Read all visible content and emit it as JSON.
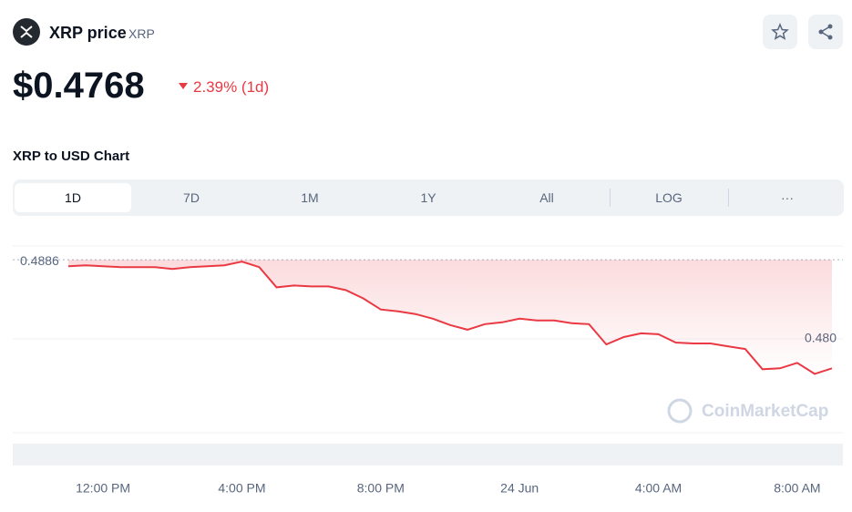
{
  "header": {
    "coin_name": "XRP price",
    "symbol": "XRP",
    "price": "$0.4768",
    "change": "2.39% (1d)",
    "chart_title": "XRP to USD Chart"
  },
  "tabs": [
    "1D",
    "7D",
    "1M",
    "1Y",
    "All",
    "LOG",
    "···"
  ],
  "watermark": "CoinMarketCap",
  "chart_data": {
    "type": "line",
    "color": "#ea3943",
    "categories": [
      null,
      null,
      "12:00 PM",
      null,
      null,
      null,
      null,
      null,
      null,
      null,
      "4:00 PM",
      null,
      null,
      null,
      null,
      null,
      null,
      null,
      "8:00 PM",
      null,
      null,
      null,
      null,
      null,
      null,
      null,
      "24 Jun",
      null,
      null,
      null,
      null,
      null,
      null,
      null,
      "4:00 AM",
      null,
      null,
      null,
      null,
      null,
      null,
      null,
      "8:00 AM",
      null,
      null
    ],
    "values": [
      0.4879,
      0.488,
      0.4879,
      0.4878,
      0.4878,
      0.4878,
      0.4876,
      0.4878,
      0.4879,
      0.488,
      0.4884,
      0.4878,
      0.4856,
      0.4858,
      0.4857,
      0.4857,
      0.4853,
      0.4844,
      0.4832,
      0.483,
      0.4827,
      0.4822,
      0.4815,
      0.481,
      0.4816,
      0.4818,
      0.4822,
      0.482,
      0.482,
      0.4817,
      0.4816,
      0.4794,
      0.4802,
      0.4806,
      0.4805,
      0.4796,
      0.4795,
      0.4795,
      0.4792,
      0.4789,
      0.4767,
      0.4768,
      0.4774,
      0.4762,
      0.4768
    ],
    "ylim": [
      0.4698,
      0.4901
    ],
    "yticks": [
      {
        "value": 0.48,
        "label": "0.480"
      }
    ],
    "reference_line": 0.4886
  }
}
